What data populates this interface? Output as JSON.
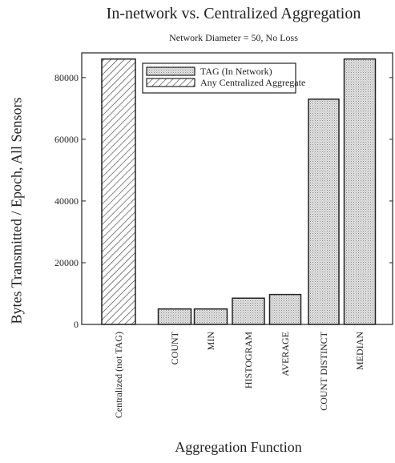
{
  "chart_data": {
    "type": "bar",
    "title": "In-network vs. Centralized Aggregation",
    "subtitle": "Network Diameter = 50, No Loss",
    "xlabel": "Aggregation Function",
    "ylabel": "Bytes Transmitted / Epoch, All Sensors",
    "ylim": [
      0,
      88000
    ],
    "yticks": [
      0,
      20000,
      40000,
      60000,
      80000
    ],
    "categories": [
      "Centralized (not TAG)",
      "COUNT",
      "MIN",
      "HISTOGRAM",
      "AVERAGE",
      "COUNT DISTINCT",
      "MEDIAN"
    ],
    "series": [
      {
        "name": "Any Centralized Aggregate",
        "pattern": "hatched",
        "values": [
          86000,
          null,
          null,
          null,
          null,
          null,
          null
        ]
      },
      {
        "name": "TAG (In Network)",
        "pattern": "dotted",
        "values": [
          null,
          5000,
          5000,
          8500,
          9700,
          73000,
          86000
        ]
      }
    ],
    "legend_position": "top-center",
    "grid": false
  }
}
